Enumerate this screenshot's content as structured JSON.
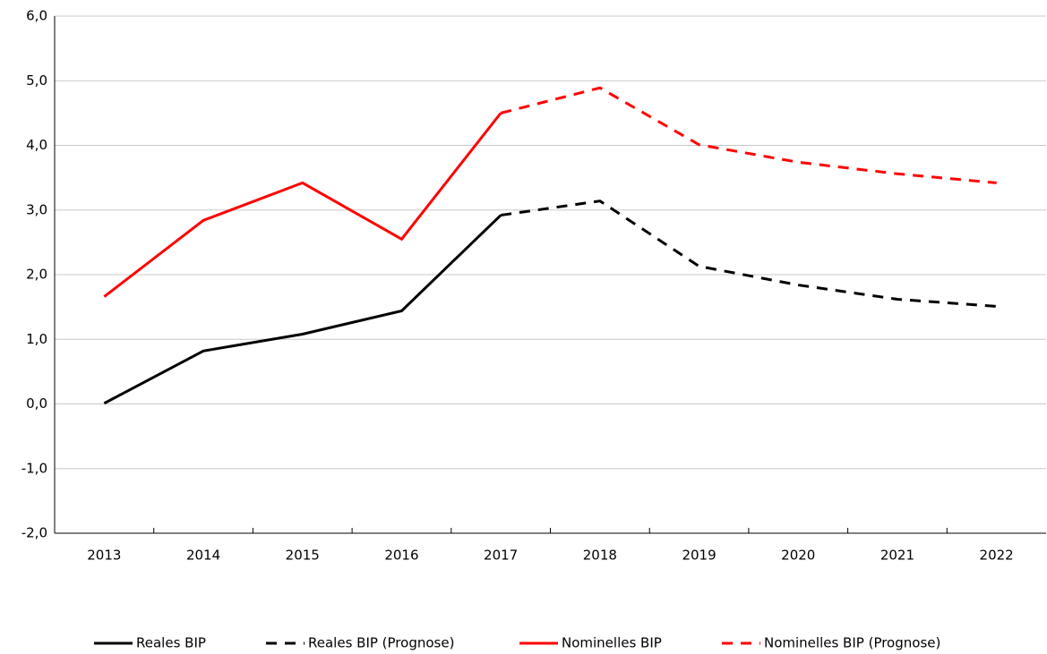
{
  "chart_data": {
    "type": "line",
    "categories": [
      "2013",
      "2014",
      "2015",
      "2016",
      "2017",
      "2018",
      "2019",
      "2020",
      "2021",
      "2022"
    ],
    "series": [
      {
        "name": "Reales BIP",
        "color": "#000000",
        "linestyle": "solid",
        "values": [
          0.01,
          0.82,
          1.08,
          1.44,
          2.92,
          null,
          null,
          null,
          null,
          null
        ]
      },
      {
        "name": "Reales BIP (Prognose)",
        "color": "#000000",
        "linestyle": "dashed",
        "values": [
          null,
          null,
          null,
          null,
          2.92,
          3.14,
          2.13,
          1.84,
          1.62,
          1.51
        ]
      },
      {
        "name": "Nominelles BIP",
        "color": "#ff0000",
        "linestyle": "solid",
        "values": [
          1.66,
          2.84,
          3.42,
          2.55,
          4.5,
          null,
          null,
          null,
          null,
          null
        ]
      },
      {
        "name": "Nominelles BIP (Prognose)",
        "color": "#ff0000",
        "linestyle": "dashed",
        "values": [
          null,
          null,
          null,
          null,
          4.5,
          4.89,
          4.01,
          3.74,
          3.56,
          3.42
        ]
      }
    ],
    "ylim": [
      -2,
      6
    ],
    "yticks": [
      {
        "value": -2,
        "label": "-2,0"
      },
      {
        "value": -1,
        "label": "-1,0"
      },
      {
        "value": 0,
        "label": "0,0"
      },
      {
        "value": 1,
        "label": "1,0"
      },
      {
        "value": 2,
        "label": "2,0"
      },
      {
        "value": 3,
        "label": "3,0"
      },
      {
        "value": 4,
        "label": "4,0"
      },
      {
        "value": 5,
        "label": "5,0"
      },
      {
        "value": 6,
        "label": "6,0"
      }
    ],
    "grid": true,
    "legend": "bottom"
  }
}
